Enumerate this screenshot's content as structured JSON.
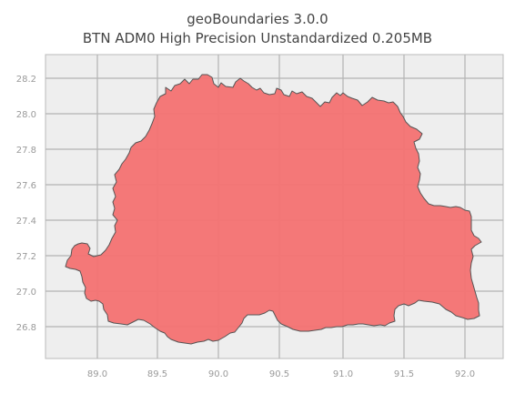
{
  "title": {
    "line1": "geoBoundaries 3.0.0",
    "line2": "BTN ADM0 High Precision Unstandardized 0.205MB"
  },
  "colors": {
    "plot_background": "#eeeeee",
    "grid": "#b3b3b3",
    "frame": "#bbbbbb",
    "fill": "#f47474",
    "outline": "#555555"
  },
  "axes": {
    "x_ticks": [
      "89.0",
      "89.5",
      "90.0",
      "90.5",
      "91.0",
      "91.5",
      "92.0"
    ],
    "y_ticks": [
      "28.2",
      "28.0",
      "27.8",
      "27.6",
      "27.4",
      "27.2",
      "27.0",
      "26.8"
    ]
  }
}
